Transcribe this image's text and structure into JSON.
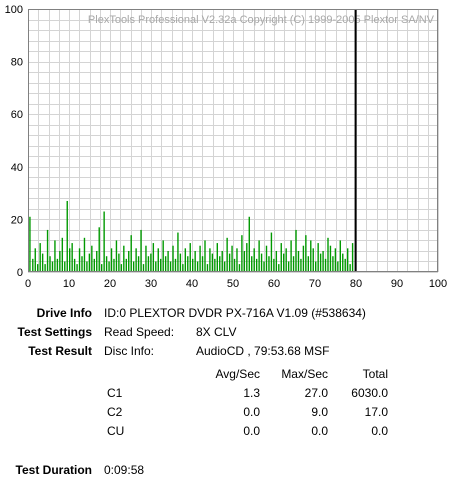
{
  "chart_data": {
    "type": "bar",
    "watermark": "PlexTools Professional V2.32a Copyright (C) 1999-2005 Plextor SA/NV",
    "xlim": [
      0,
      100
    ],
    "ylim": [
      0,
      100
    ],
    "x_ticks": [
      "0",
      "10",
      "20",
      "30",
      "40",
      "50",
      "60",
      "70",
      "80",
      "90",
      "100"
    ],
    "y_ticks": [
      "0",
      "20",
      "40",
      "60",
      "80",
      "100"
    ],
    "grid": true,
    "end_marker_x": 79.9,
    "series": [
      {
        "color": "#009900",
        "x": [
          0.3,
          1,
          1.6,
          2.2,
          2.8,
          3.4,
          4,
          4.6,
          5.2,
          5.8,
          6.4,
          7,
          7.6,
          8.2,
          8.8,
          9.4,
          10,
          10.6,
          11.2,
          11.8,
          12.4,
          13,
          13.6,
          14.2,
          14.8,
          15.4,
          16,
          16.6,
          17.2,
          17.8,
          18.4,
          19,
          19.6,
          20.2,
          20.8,
          21.4,
          22,
          22.6,
          23.2,
          23.8,
          24.4,
          25,
          25.6,
          26.2,
          26.8,
          27.4,
          28,
          28.6,
          29.2,
          29.8,
          30.4,
          31,
          31.6,
          32.2,
          32.8,
          33.4,
          34,
          34.6,
          35.2,
          35.8,
          36.4,
          37,
          37.6,
          38.2,
          38.8,
          39.4,
          40,
          40.6,
          41.2,
          41.8,
          42.4,
          43,
          43.6,
          44.2,
          44.8,
          45.4,
          46,
          46.6,
          47.2,
          47.8,
          48.4,
          49,
          49.6,
          50.2,
          50.8,
          51.4,
          52,
          52.6,
          53.2,
          53.8,
          54.4,
          55,
          55.6,
          56.2,
          56.8,
          57.4,
          58,
          58.6,
          59.2,
          59.8,
          60.4,
          61,
          61.6,
          62.2,
          62.8,
          63.4,
          64,
          64.6,
          65.2,
          65.8,
          66.4,
          67,
          67.6,
          68.2,
          68.8,
          69.4,
          70,
          70.6,
          71.2,
          71.8,
          72.4,
          73,
          73.6,
          74.2,
          74.8,
          75.4,
          76,
          76.6,
          77.2,
          77.8,
          78.4,
          79
        ],
        "values": [
          21,
          5,
          9,
          3,
          11,
          7,
          3,
          16,
          6,
          4,
          12,
          5,
          8,
          13,
          4,
          27,
          9,
          11,
          5,
          3,
          9,
          6,
          13,
          4,
          7,
          10,
          5,
          8,
          17,
          3,
          23,
          6,
          4,
          9,
          5,
          12,
          7,
          3,
          10,
          5,
          8,
          14,
          4,
          9,
          6,
          16,
          3,
          10,
          6,
          7,
          11,
          4,
          9,
          5,
          12,
          6,
          8,
          4,
          10,
          5,
          15,
          7,
          3,
          9,
          6,
          11,
          5,
          8,
          4,
          10,
          6,
          12,
          3,
          9,
          7,
          5,
          11,
          6,
          8,
          4,
          13,
          7,
          10,
          5,
          9,
          3,
          14,
          8,
          11,
          21,
          6,
          9,
          5,
          12,
          7,
          4,
          10,
          6,
          15,
          5,
          8,
          3,
          11,
          7,
          9,
          4,
          12,
          6,
          16,
          8,
          5,
          10,
          14,
          6,
          12,
          9,
          4,
          11,
          7,
          8,
          5,
          13,
          10,
          6,
          9,
          4,
          12,
          7,
          5,
          9,
          3,
          11
        ]
      }
    ]
  },
  "info": {
    "drive_info_label": "Drive Info",
    "drive_info_value": "ID:0 PLEXTOR DVDR PX-716A V1.09 (#538634)",
    "test_settings_label": "Test Settings",
    "read_speed_label": "Read Speed:",
    "read_speed_value": "8X CLV",
    "test_result_label": "Test Result",
    "disc_info_label": "Disc Info:",
    "disc_info_value": "AudioCD , 79:53.68 MSF",
    "table": {
      "headers": [
        "Avg/Sec",
        "Max/Sec",
        "Total"
      ],
      "rows": [
        {
          "name": "C1",
          "avg": "1.3",
          "max": "27.0",
          "total": "6030.0"
        },
        {
          "name": "C2",
          "avg": "0.0",
          "max": "9.0",
          "total": "17.0"
        },
        {
          "name": "CU",
          "avg": "0.0",
          "max": "0.0",
          "total": "0.0"
        }
      ]
    },
    "test_duration_label": "Test Duration",
    "test_duration_value": "0:09:58"
  }
}
